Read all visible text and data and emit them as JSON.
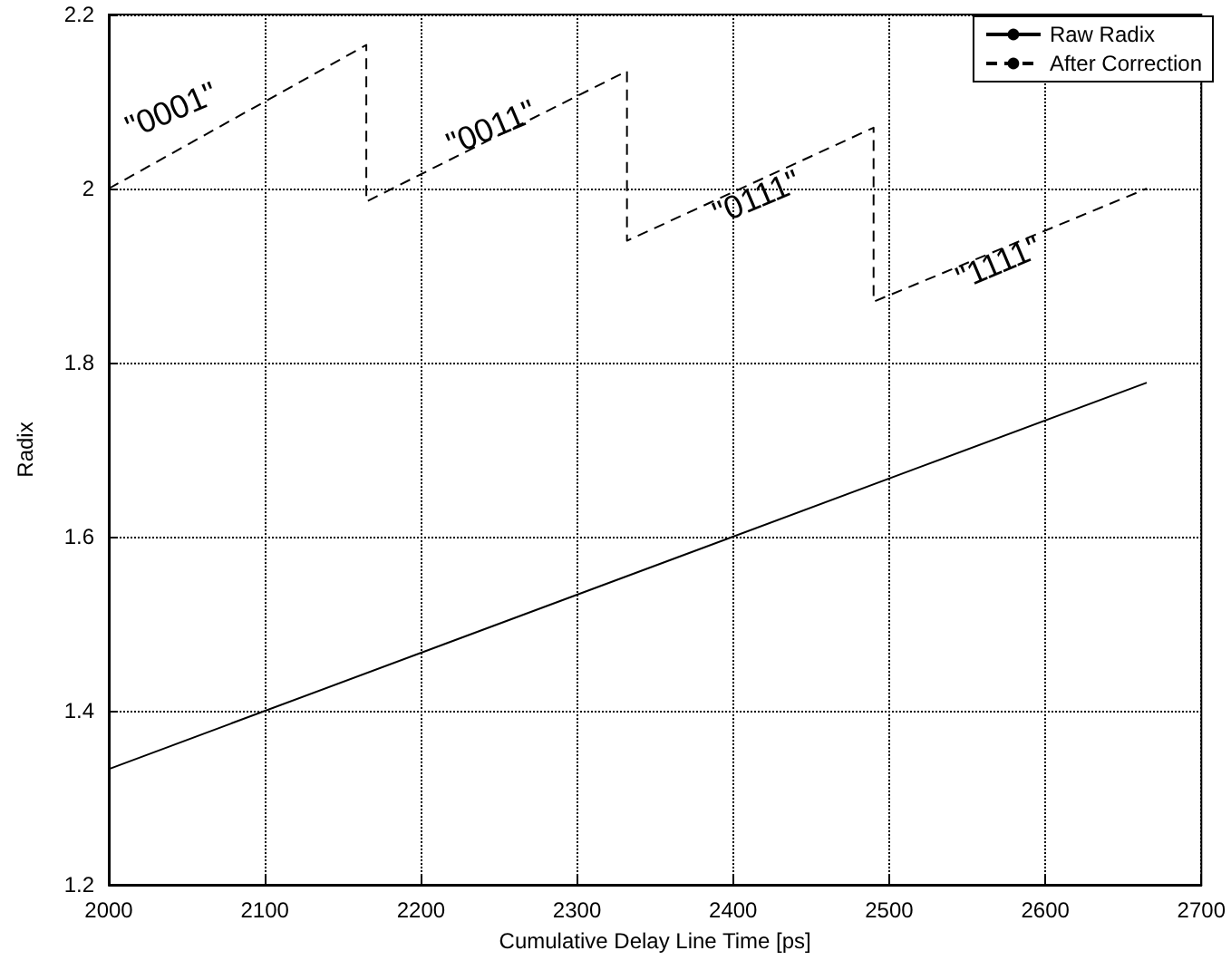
{
  "chart_data": {
    "type": "line",
    "xlabel": "Cumulative Delay Line Time [ps]",
    "ylabel": "Radix",
    "xlim": [
      2000,
      2700
    ],
    "xticks": [
      2000,
      2100,
      2200,
      2300,
      2400,
      2500,
      2600,
      2700
    ],
    "ylim": [
      1.2,
      2.2
    ],
    "yticks": [
      1.2,
      1.4,
      1.6,
      1.8,
      2,
      2.2
    ],
    "grid": true,
    "legend": "top right",
    "marker": "none",
    "series": [
      {
        "name": "Raw Radix",
        "color": "#000000",
        "line_style": "solid",
        "x": [
          2000,
          2665
        ],
        "values": [
          1.333,
          1.777
        ]
      },
      {
        "name": "After Correction",
        "color": "#000000",
        "line_style": "dashed",
        "x": [
          2000,
          2165,
          2165,
          2332,
          2332,
          2490,
          2490,
          2665
        ],
        "values": [
          2.0,
          2.165,
          1.985,
          2.135,
          1.94,
          2.07,
          1.87,
          2.0
        ]
      }
    ],
    "annotations": [
      "\"0001\"",
      "\"0011\"",
      "\"0111\"",
      "\"1111\""
    ]
  }
}
